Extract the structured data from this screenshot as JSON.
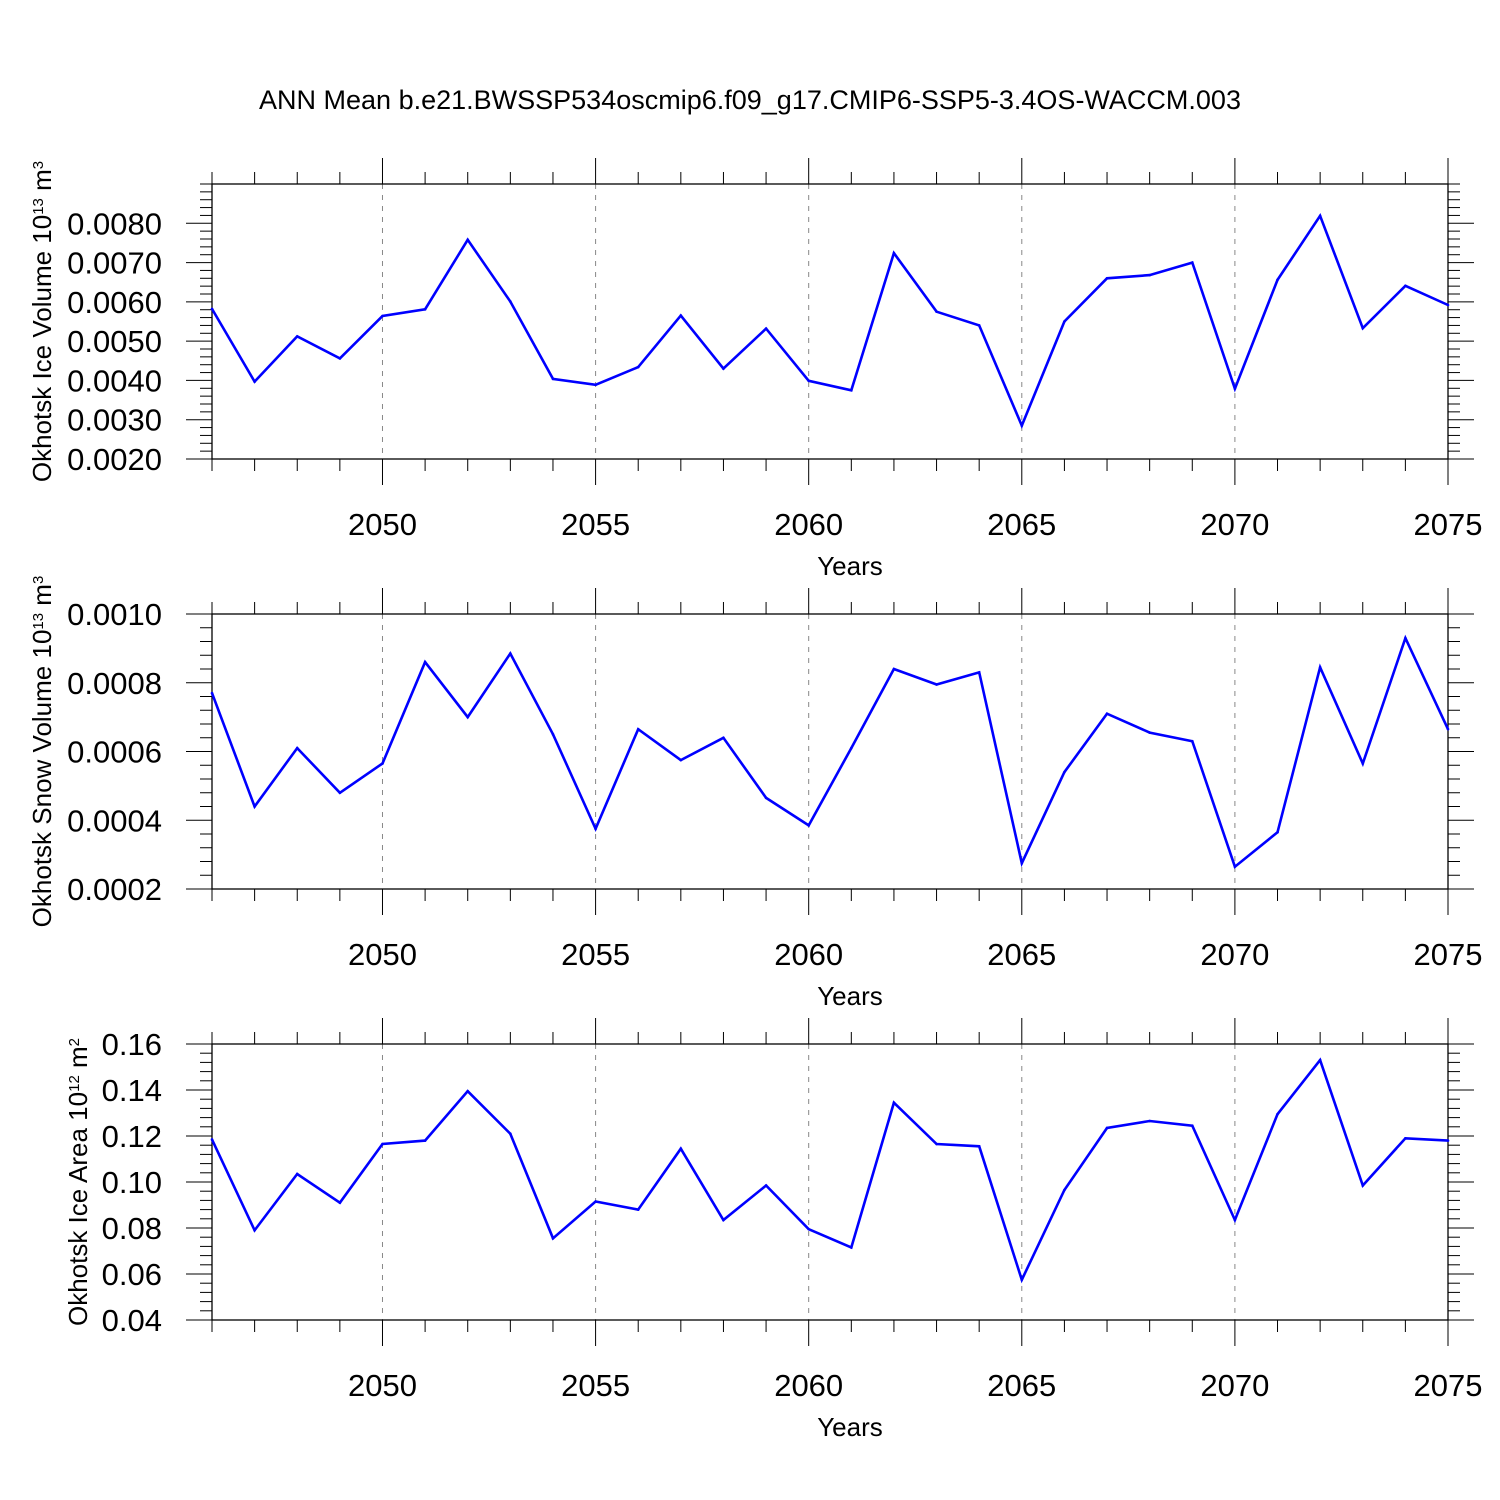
{
  "title": "ANN Mean b.e21.BWSSP534oscmip6.f09_g17.CMIP6-SSP5-3.4OS-WACCM.003",
  "series_color": "#0000ff",
  "grid_color": "#888888",
  "chart_data": [
    {
      "type": "line",
      "name": "ice-volume",
      "ylabel": {
        "main": "Okhotsk Ice Volume 10",
        "exp": "13",
        "unit": " m",
        "unit_exp": "3"
      },
      "xlabel": "Years",
      "xlim": [
        2046,
        2075
      ],
      "ylim": [
        0.002,
        0.009
      ],
      "x_ticks": [
        2050,
        2055,
        2060,
        2065,
        2070,
        2075
      ],
      "x_tick_labels": [
        "2050",
        "2055",
        "2060",
        "2065",
        "2070",
        "2075"
      ],
      "y_ticks": [
        0.002,
        0.003,
        0.004,
        0.005,
        0.006,
        0.007,
        0.008
      ],
      "y_tick_labels": [
        "0.0020",
        "0.0030",
        "0.0040",
        "0.0050",
        "0.0060",
        "0.0070",
        "0.0080"
      ],
      "grid": "vertical dashed at major x ticks",
      "x": [
        2046,
        2047,
        2048,
        2049,
        2050,
        2051,
        2052,
        2053,
        2054,
        2055,
        2056,
        2057,
        2058,
        2059,
        2060,
        2061,
        2062,
        2063,
        2064,
        2065,
        2066,
        2067,
        2068,
        2069,
        2070,
        2071,
        2072,
        2073,
        2074,
        2075
      ],
      "values": [
        0.00582,
        0.00397,
        0.00512,
        0.00456,
        0.00564,
        0.00581,
        0.00758,
        0.00601,
        0.00404,
        0.00389,
        0.00434,
        0.00565,
        0.0043,
        0.00532,
        0.00399,
        0.00375,
        0.00724,
        0.00575,
        0.0054,
        0.00285,
        0.0055,
        0.0066,
        0.00668,
        0.007,
        0.00379,
        0.00656,
        0.00819,
        0.00533,
        0.00641,
        0.00592
      ]
    },
    {
      "type": "line",
      "name": "snow-volume",
      "ylabel": {
        "main": "Okhotsk Snow Volume 10",
        "exp": "13",
        "unit": " m",
        "unit_exp": "3"
      },
      "xlabel": "Years",
      "xlim": [
        2046,
        2075
      ],
      "ylim": [
        0.0002,
        0.001
      ],
      "x_ticks": [
        2050,
        2055,
        2060,
        2065,
        2070,
        2075
      ],
      "x_tick_labels": [
        "2050",
        "2055",
        "2060",
        "2065",
        "2070",
        "2075"
      ],
      "y_ticks": [
        0.0002,
        0.0004,
        0.0006,
        0.0008,
        0.001
      ],
      "y_tick_labels": [
        "0.0002",
        "0.0004",
        "0.0006",
        "0.0008",
        "0.0010"
      ],
      "grid": "vertical dashed at major x ticks",
      "x": [
        2046,
        2047,
        2048,
        2049,
        2050,
        2051,
        2052,
        2053,
        2054,
        2055,
        2056,
        2057,
        2058,
        2059,
        2060,
        2061,
        2062,
        2063,
        2064,
        2065,
        2066,
        2067,
        2068,
        2069,
        2070,
        2071,
        2072,
        2073,
        2074,
        2075
      ],
      "values": [
        0.00077,
        0.00044,
        0.00061,
        0.00048,
        0.000565,
        0.00086,
        0.0007,
        0.000885,
        0.00065,
        0.000375,
        0.000665,
        0.000575,
        0.00064,
        0.000465,
        0.000385,
        0.00061,
        0.00084,
        0.000795,
        0.00083,
        0.000275,
        0.00054,
        0.00071,
        0.000655,
        0.00063,
        0.000265,
        0.000365,
        0.000845,
        0.000565,
        0.00093,
        0.000665
      ]
    },
    {
      "type": "line",
      "name": "ice-area",
      "ylabel": {
        "main": "Okhotsk Ice Area 10",
        "exp": "12",
        "unit": " m",
        "unit_exp": "2"
      },
      "xlabel": "Years",
      "xlim": [
        2046,
        2075
      ],
      "ylim": [
        0.04,
        0.16
      ],
      "x_ticks": [
        2050,
        2055,
        2060,
        2065,
        2070,
        2075
      ],
      "x_tick_labels": [
        "2050",
        "2055",
        "2060",
        "2065",
        "2070",
        "2075"
      ],
      "y_ticks": [
        0.04,
        0.06,
        0.08,
        0.1,
        0.12,
        0.14,
        0.16
      ],
      "y_tick_labels": [
        "0.04",
        "0.06",
        "0.08",
        "0.10",
        "0.12",
        "0.14",
        "0.16"
      ],
      "grid": "vertical dashed at major x ticks",
      "x": [
        2046,
        2047,
        2048,
        2049,
        2050,
        2051,
        2052,
        2053,
        2054,
        2055,
        2056,
        2057,
        2058,
        2059,
        2060,
        2061,
        2062,
        2063,
        2064,
        2065,
        2066,
        2067,
        2068,
        2069,
        2070,
        2071,
        2072,
        2073,
        2074,
        2075
      ],
      "values": [
        0.1185,
        0.079,
        0.1035,
        0.091,
        0.1165,
        0.118,
        0.1395,
        0.121,
        0.0755,
        0.0915,
        0.088,
        0.1145,
        0.0835,
        0.0985,
        0.0795,
        0.0715,
        0.1345,
        0.1165,
        0.1155,
        0.0575,
        0.0965,
        0.1235,
        0.1265,
        0.1245,
        0.0835,
        0.1295,
        0.153,
        0.0985,
        0.119,
        0.118
      ]
    }
  ]
}
